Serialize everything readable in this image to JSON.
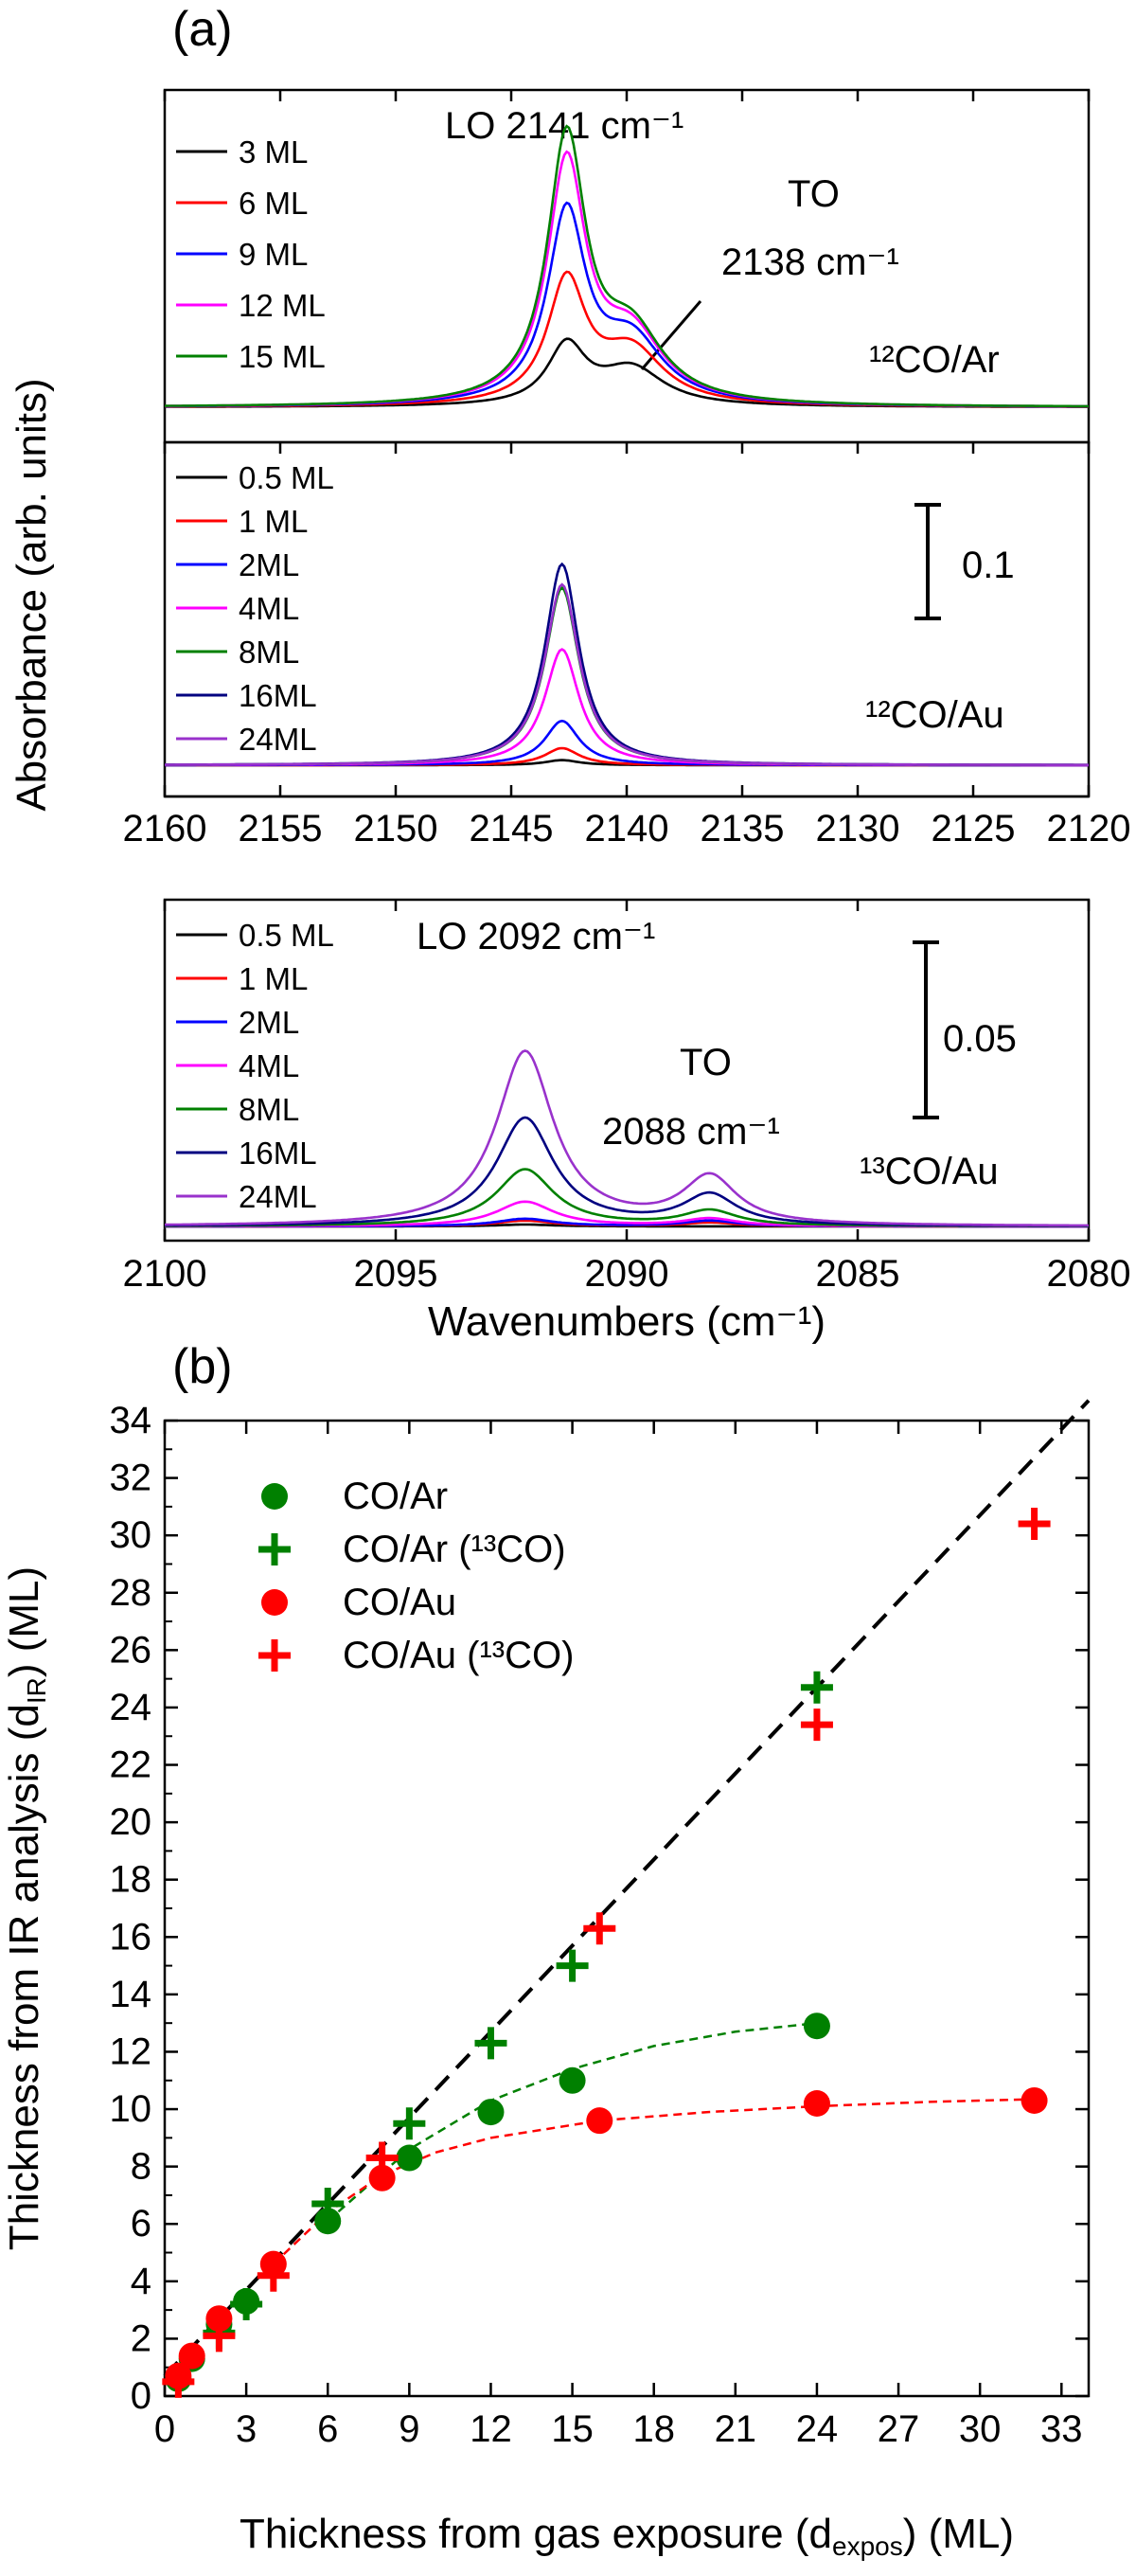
{
  "figure": {
    "panel_a_label": "(a)",
    "panel_b_label": "(b)",
    "y_label_a": "Absorbance (arb. units)",
    "x_label_a": "Wavenumbers (cm⁻¹)"
  },
  "chart_data": [
    {
      "type": "line",
      "panel": "a-top",
      "xlim": [
        2160,
        2120
      ],
      "x_reversed": true,
      "sample_label": "¹²CO/Ar",
      "annotations": [
        {
          "text": "LO 2141 cm⁻¹"
        },
        {
          "text": "TO"
        },
        {
          "text": "2138 cm⁻¹"
        }
      ],
      "legend_placement": "top-left",
      "series": [
        {
          "name": "3 ML",
          "color": "#000000",
          "peak_height": 0.028,
          "to_height": 0.018
        },
        {
          "name": "6 ML",
          "color": "#ff0000",
          "peak_height": 0.058,
          "to_height": 0.026
        },
        {
          "name": "9 ML",
          "color": "#0000ff",
          "peak_height": 0.09,
          "to_height": 0.03
        },
        {
          "name": "12 ML",
          "color": "#ff00ff",
          "peak_height": 0.114,
          "to_height": 0.032
        },
        {
          "name": "15 ML",
          "color": "#008000",
          "peak_height": 0.126,
          "to_height": 0.033
        }
      ]
    },
    {
      "type": "line",
      "panel": "a-middle",
      "xlabel": "",
      "xlim": [
        2160,
        2120
      ],
      "x_reversed": true,
      "x_ticks": [
        2160,
        2155,
        2150,
        2145,
        2140,
        2135,
        2130,
        2125,
        2120
      ],
      "sample_label": "¹²CO/Au",
      "scale_bar": "0.1",
      "legend_placement": "top-left",
      "series": [
        {
          "name": "0.5 ML",
          "color": "#000000",
          "peak_height": 0.003
        },
        {
          "name": "1 ML",
          "color": "#ff0000",
          "peak_height": 0.01
        },
        {
          "name": "2ML",
          "color": "#0000ff",
          "peak_height": 0.026
        },
        {
          "name": "4ML",
          "color": "#ff00ff",
          "peak_height": 0.068
        },
        {
          "name": "8ML",
          "color": "#008000",
          "peak_height": 0.104
        },
        {
          "name": "16ML",
          "color": "#000080",
          "peak_height": 0.118
        },
        {
          "name": "24ML",
          "color": "#9932cc",
          "peak_height": 0.106
        }
      ]
    },
    {
      "type": "line",
      "panel": "a-bottom",
      "xlim": [
        2100,
        2080
      ],
      "x_reversed": true,
      "x_ticks": [
        2100,
        2095,
        2090,
        2085,
        2080
      ],
      "sample_label": "¹³CO/Au",
      "scale_bar": "0.05",
      "annotations": [
        {
          "text": "LO 2092 cm⁻¹"
        },
        {
          "text": "TO"
        },
        {
          "text": "2088 cm⁻¹"
        }
      ],
      "legend_placement": "top-left",
      "series": [
        {
          "name": "0.5 ML",
          "color": "#000000",
          "lo_height": 0.001,
          "to_height": 0.0
        },
        {
          "name": "1 ML",
          "color": "#ff0000",
          "lo_height": 0.003,
          "to_height": 0.002
        },
        {
          "name": "2ML",
          "color": "#0000ff",
          "lo_height": 0.004,
          "to_height": 0.003
        },
        {
          "name": "4ML",
          "color": "#ff00ff",
          "lo_height": 0.013,
          "to_height": 0.004
        },
        {
          "name": "8ML",
          "color": "#008000",
          "lo_height": 0.03,
          "to_height": 0.008
        },
        {
          "name": "16ML",
          "color": "#000080",
          "lo_height": 0.057,
          "to_height": 0.016
        },
        {
          "name": "24ML",
          "color": "#9932cc",
          "lo_height": 0.092,
          "to_height": 0.025
        }
      ]
    },
    {
      "type": "scatter",
      "panel": "b",
      "xlabel": "Thickness from gas exposure (d",
      "xlabel_sub": "expos",
      "xlabel_end": ") (ML)",
      "ylabel": "Thickness from IR analysis (d",
      "ylabel_sub": "IR",
      "ylabel_end": ") (ML)",
      "xlim": [
        0,
        34
      ],
      "ylim": [
        0,
        34
      ],
      "x_ticks": [
        0,
        3,
        6,
        9,
        12,
        15,
        18,
        21,
        24,
        27,
        30,
        33
      ],
      "y_ticks": [
        0,
        2,
        4,
        6,
        8,
        10,
        12,
        14,
        16,
        18,
        20,
        22,
        24,
        26,
        28,
        30,
        32,
        34
      ],
      "reference_line": {
        "style": "dashed",
        "color": "#000000",
        "points": [
          [
            0,
            0.7
          ],
          [
            34,
            34.7
          ]
        ]
      },
      "legend_placement": "top-left",
      "series": [
        {
          "name": "CO/Ar",
          "marker": "circle",
          "color": "#008000",
          "x": [
            0.5,
            1,
            2,
            3,
            6,
            9,
            12,
            15,
            24
          ],
          "y": [
            0.6,
            1.3,
            2.5,
            3.3,
            6.1,
            8.3,
            9.9,
            11.0,
            12.9
          ]
        },
        {
          "name": "CO/Ar (¹³CO)",
          "marker": "plus",
          "color": "#008000",
          "x": [
            2,
            3,
            6,
            9,
            12,
            15,
            24
          ],
          "y": [
            2.2,
            3.2,
            6.7,
            9.5,
            12.3,
            15.0,
            24.7
          ]
        },
        {
          "name": "CO/Au",
          "marker": "circle",
          "color": "#ff0000",
          "x": [
            0.5,
            1,
            2,
            4,
            8,
            16,
            24,
            32
          ],
          "y": [
            0.7,
            1.4,
            2.7,
            4.6,
            7.6,
            9.6,
            10.2,
            10.3
          ]
        },
        {
          "name": "CO/Au (¹³CO)",
          "marker": "plus",
          "color": "#ff0000",
          "x": [
            0.5,
            2,
            4,
            8,
            16,
            24,
            32
          ],
          "y": [
            0.5,
            2.1,
            4.2,
            8.3,
            16.3,
            23.4,
            30.4
          ]
        }
      ],
      "fit_curves": [
        {
          "color": "#008000",
          "style": "dashed",
          "x": [
            6,
            9,
            12,
            15,
            18,
            21,
            24
          ],
          "y": [
            6.1,
            8.6,
            10.3,
            11.4,
            12.2,
            12.7,
            13.0
          ]
        },
        {
          "color": "#ff0000",
          "style": "dashed",
          "x": [
            4,
            6,
            8,
            10,
            12,
            16,
            20,
            24,
            28,
            32
          ],
          "y": [
            4.6,
            6.4,
            7.7,
            8.5,
            9.0,
            9.6,
            9.9,
            10.1,
            10.25,
            10.35
          ]
        }
      ]
    }
  ]
}
